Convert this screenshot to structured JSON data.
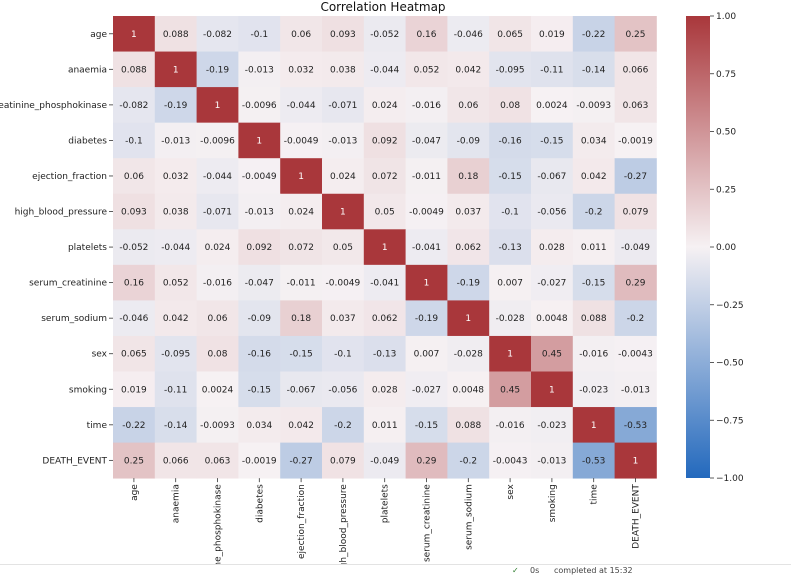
{
  "chart_data": {
    "type": "heatmap",
    "title": "Correlation Heatmap",
    "row_labels": [
      "age",
      "anaemia",
      "creatinine_phosphokinase",
      "diabetes",
      "ejection_fraction",
      "high_blood_pressure",
      "platelets",
      "serum_creatinine",
      "serum_sodium",
      "sex",
      "smoking",
      "time",
      "DEATH_EVENT"
    ],
    "col_labels": [
      "age",
      "anaemia",
      "creatinine_phosphokinase",
      "diabetes",
      "ejection_fraction",
      "high_blood_pressure",
      "platelets",
      "serum_creatinine",
      "serum_sodium",
      "sex",
      "smoking",
      "time",
      "DEATH_EVENT"
    ],
    "values": [
      [
        1,
        0.088,
        -0.082,
        -0.1,
        0.06,
        0.093,
        -0.052,
        0.16,
        -0.046,
        0.065,
        0.019,
        -0.22,
        0.25
      ],
      [
        0.088,
        1,
        -0.19,
        -0.013,
        0.032,
        0.038,
        -0.044,
        0.052,
        0.042,
        -0.095,
        -0.11,
        -0.14,
        0.066
      ],
      [
        -0.082,
        -0.19,
        1,
        -0.0096,
        -0.044,
        -0.071,
        0.024,
        -0.016,
        0.06,
        0.08,
        0.0024,
        -0.0093,
        0.063
      ],
      [
        -0.1,
        -0.013,
        -0.0096,
        1,
        -0.0049,
        -0.013,
        0.092,
        -0.047,
        -0.09,
        -0.16,
        -0.15,
        0.034,
        -0.0019
      ],
      [
        0.06,
        0.032,
        -0.044,
        -0.0049,
        1,
        0.024,
        0.072,
        -0.011,
        0.18,
        -0.15,
        -0.067,
        0.042,
        -0.27
      ],
      [
        0.093,
        0.038,
        -0.071,
        -0.013,
        0.024,
        1,
        0.05,
        -0.0049,
        0.037,
        -0.1,
        -0.056,
        -0.2,
        0.079
      ],
      [
        -0.052,
        -0.044,
        0.024,
        0.092,
        0.072,
        0.05,
        1,
        -0.041,
        0.062,
        -0.13,
        0.028,
        0.011,
        -0.049
      ],
      [
        0.16,
        0.052,
        -0.016,
        -0.047,
        -0.011,
        -0.0049,
        -0.041,
        1,
        -0.19,
        0.007,
        -0.027,
        -0.15,
        0.29
      ],
      [
        -0.046,
        0.042,
        0.06,
        -0.09,
        0.18,
        0.037,
        0.062,
        -0.19,
        1,
        -0.028,
        0.0048,
        0.088,
        -0.2
      ],
      [
        0.065,
        -0.095,
        0.08,
        -0.16,
        -0.15,
        -0.1,
        -0.13,
        0.007,
        -0.028,
        1,
        0.45,
        -0.016,
        -0.0043
      ],
      [
        0.019,
        -0.11,
        0.0024,
        -0.15,
        -0.067,
        -0.056,
        0.028,
        -0.027,
        0.0048,
        0.45,
        1,
        -0.023,
        -0.013
      ],
      [
        -0.22,
        -0.14,
        -0.0093,
        0.034,
        0.042,
        -0.2,
        0.011,
        -0.15,
        0.088,
        -0.016,
        -0.023,
        1,
        -0.53
      ],
      [
        0.25,
        0.066,
        0.063,
        -0.0019,
        -0.27,
        0.079,
        -0.049,
        0.29,
        -0.2,
        -0.0043,
        -0.013,
        -0.53,
        1
      ]
    ],
    "value_labels": [
      [
        "1",
        "0.088",
        "-0.082",
        "-0.1",
        "0.06",
        "0.093",
        "-0.052",
        "0.16",
        "-0.046",
        "0.065",
        "0.019",
        "-0.22",
        "0.25"
      ],
      [
        "0.088",
        "1",
        "-0.19",
        "-0.013",
        "0.032",
        "0.038",
        "-0.044",
        "0.052",
        "0.042",
        "-0.095",
        "-0.11",
        "-0.14",
        "0.066"
      ],
      [
        "-0.082",
        "-0.19",
        "1",
        "-0.0096",
        "-0.044",
        "-0.071",
        "0.024",
        "-0.016",
        "0.06",
        "0.08",
        "0.0024",
        "-0.0093",
        "0.063"
      ],
      [
        "-0.1",
        "-0.013",
        "-0.0096",
        "1",
        "-0.0049",
        "-0.013",
        "0.092",
        "-0.047",
        "-0.09",
        "-0.16",
        "-0.15",
        "0.034",
        "-0.0019"
      ],
      [
        "0.06",
        "0.032",
        "-0.044",
        "-0.0049",
        "1",
        "0.024",
        "0.072",
        "-0.011",
        "0.18",
        "-0.15",
        "-0.067",
        "0.042",
        "-0.27"
      ],
      [
        "0.093",
        "0.038",
        "-0.071",
        "-0.013",
        "0.024",
        "1",
        "0.05",
        "-0.0049",
        "0.037",
        "-0.1",
        "-0.056",
        "-0.2",
        "0.079"
      ],
      [
        "-0.052",
        "-0.044",
        "0.024",
        "0.092",
        "0.072",
        "0.05",
        "1",
        "-0.041",
        "0.062",
        "-0.13",
        "0.028",
        "0.011",
        "-0.049"
      ],
      [
        "0.16",
        "0.052",
        "-0.016",
        "-0.047",
        "-0.011",
        "-0.0049",
        "-0.041",
        "1",
        "-0.19",
        "0.007",
        "-0.027",
        "-0.15",
        "0.29"
      ],
      [
        "-0.046",
        "0.042",
        "0.06",
        "-0.09",
        "0.18",
        "0.037",
        "0.062",
        "-0.19",
        "1",
        "-0.028",
        "0.0048",
        "0.088",
        "-0.2"
      ],
      [
        "0.065",
        "-0.095",
        "0.08",
        "-0.16",
        "-0.15",
        "-0.1",
        "-0.13",
        "0.007",
        "-0.028",
        "1",
        "0.45",
        "-0.016",
        "-0.0043"
      ],
      [
        "0.019",
        "-0.11",
        "0.0024",
        "-0.15",
        "-0.067",
        "-0.056",
        "0.028",
        "-0.027",
        "0.0048",
        "0.45",
        "1",
        "-0.023",
        "-0.013"
      ],
      [
        "-0.22",
        "-0.14",
        "-0.0093",
        "0.034",
        "0.042",
        "-0.2",
        "0.011",
        "-0.15",
        "0.088",
        "-0.016",
        "-0.023",
        "1",
        "-0.53"
      ],
      [
        "0.25",
        "0.066",
        "0.063",
        "-0.0019",
        "-0.27",
        "0.079",
        "-0.049",
        "0.29",
        "-0.2",
        "-0.0043",
        "-0.013",
        "-0.53",
        "1"
      ]
    ],
    "colorbar": {
      "range": [
        -1,
        1
      ],
      "ticks": [
        1.0,
        0.75,
        0.5,
        0.25,
        0.0,
        -0.25,
        -0.5,
        -0.75,
        -1.0
      ],
      "tick_labels": [
        "1.00",
        "0.75",
        "0.50",
        "0.25",
        "0.00",
        "−0.25",
        "−0.50",
        "−0.75",
        "−1.00"
      ],
      "colormap": "vlag",
      "colors": {
        "low": "#2369bd",
        "mid": "#f6f1f3",
        "high": "#a9373b"
      }
    },
    "grid": false,
    "legend": "colorbar-right"
  },
  "status": {
    "check_icon": "check-icon",
    "duration": "0s",
    "completed": "completed at 15:32"
  }
}
